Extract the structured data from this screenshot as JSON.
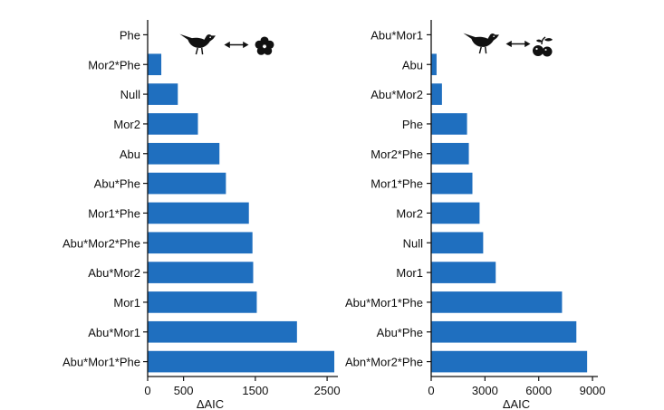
{
  "chart_data": [
    {
      "type": "bar",
      "orientation": "horizontal",
      "categories": [
        "Phe",
        "Mor2*Phe",
        "Null",
        "Mor2",
        "Abu",
        "Abu*Phe",
        "Mor1*Phe",
        "Abu*Mor2*Phe",
        "Abu*Mor2",
        "Mor1",
        "Abu*Mor1",
        "Abu*Mor1*Phe"
      ],
      "values": [
        0,
        190,
        420,
        700,
        1000,
        1090,
        1410,
        1460,
        1470,
        1520,
        2080,
        2600
      ],
      "xlabel": "ΔAIC",
      "xticks": [
        0,
        500,
        1500,
        2500
      ],
      "xlim": [
        0,
        2650
      ],
      "bar_color": "#1f6fbf",
      "icons": [
        "bird-icon",
        "double-arrow-icon",
        "flower-icon"
      ]
    },
    {
      "type": "bar",
      "orientation": "horizontal",
      "categories": [
        "Abu*Mor1",
        "Abu",
        "Abu*Mor2",
        "Phe",
        "Mor2*Phe",
        "Mor1*Phe",
        "Mor2",
        "Null",
        "Mor1",
        "Abu*Mor1*Phe",
        "Abu*Phe",
        "Abn*Mor2*Phe"
      ],
      "values": [
        0,
        300,
        600,
        2000,
        2100,
        2300,
        2700,
        2900,
        3600,
        7300,
        8100,
        8700
      ],
      "xlabel": "ΔAIC",
      "xticks": [
        0,
        3000,
        6000,
        9000
      ],
      "xlim": [
        0,
        9300
      ],
      "bar_color": "#1f6fbf",
      "icons": [
        "bird-icon",
        "double-arrow-icon",
        "fruit-icon"
      ]
    }
  ]
}
